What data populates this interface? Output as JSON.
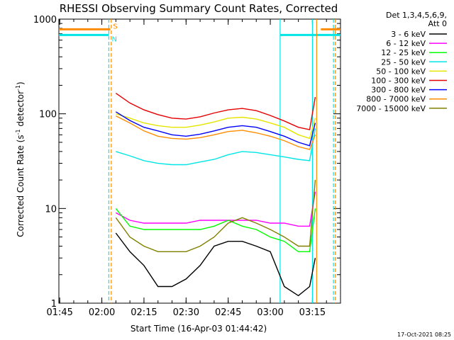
{
  "chart_data": {
    "type": "line",
    "title": "RHESSI Observing Summary Count Rates, Corrected",
    "xlabel": "Start Time (16-Apr-03 01:44:42)",
    "ylabel_main": "Corrected Count Rate (s",
    "ylabel_sup1": "-1",
    "ylabel_mid": " detector",
    "ylabel_sup2": "-1",
    "ylabel_end": ")",
    "y_scale": "log",
    "ylim": [
      1,
      1000
    ],
    "xlim": [
      "01:44:42",
      "03:25:00"
    ],
    "x_ticks": [
      "01:45",
      "02:00",
      "02:15",
      "02:30",
      "02:45",
      "03:00",
      "03:15"
    ],
    "y_ticks": [
      "1",
      "10",
      "100",
      "1000"
    ],
    "legend_title": "Det 1,3,4,5,6,9,",
    "legend_subtitle": "Att 0",
    "legend_placement": "right",
    "footer_date": "17-Oct-2021 08:25",
    "flag_labels": {
      "saa": {
        "text": "S",
        "color": "#ff8c00",
        "value": 780
      },
      "night": {
        "text": "N",
        "color": "#00e5e5",
        "value": 680
      }
    },
    "flag_intervals": {
      "saa": [
        [
          "01:44:42",
          "02:03:00"
        ],
        [
          "03:18:00",
          "03:25:00"
        ]
      ],
      "night": [
        [
          "01:44:42",
          "02:02:30"
        ],
        [
          "03:03:30",
          "03:25:00"
        ]
      ]
    },
    "vertical_lines": [
      {
        "time": "02:02:30",
        "color": "#00e5e5",
        "style": "dashed"
      },
      {
        "time": "02:03:20",
        "color": "#ff8c00",
        "style": "dashed"
      },
      {
        "time": "03:03:30",
        "color": "#00e5e5",
        "style": "solid"
      },
      {
        "time": "03:15:00",
        "color": "#00e5e5",
        "style": "solid"
      },
      {
        "time": "03:16:30",
        "color": "#ff8c00",
        "style": "solid"
      },
      {
        "time": "03:22:30",
        "color": "#00e5e5",
        "style": "dashed"
      },
      {
        "time": "03:23:10",
        "color": "#ff8c00",
        "style": "dashed"
      }
    ],
    "x": [
      "02:05",
      "02:10",
      "02:15",
      "02:20",
      "02:25",
      "02:30",
      "02:35",
      "02:40",
      "02:45",
      "02:50",
      "02:55",
      "03:00",
      "03:05",
      "03:10",
      "03:14",
      "03:16"
    ],
    "series": [
      {
        "name": "3 - 6 keV",
        "color": "#000000",
        "values": [
          5.5,
          3.5,
          2.5,
          1.5,
          1.5,
          1.8,
          2.5,
          4.0,
          4.5,
          4.5,
          4.0,
          3.5,
          1.5,
          1.2,
          1.5,
          3.0
        ]
      },
      {
        "name": "6 - 12 keV",
        "color": "#ff00ff",
        "values": [
          9.0,
          7.5,
          7.0,
          7.0,
          7.0,
          7.0,
          7.5,
          7.5,
          7.5,
          7.5,
          7.5,
          7.0,
          7.0,
          6.5,
          6.5,
          15.0
        ]
      },
      {
        "name": "12 - 25 keV",
        "color": "#00ff00",
        "values": [
          10.0,
          6.5,
          6.0,
          6.0,
          6.0,
          6.0,
          6.0,
          6.5,
          7.5,
          6.5,
          6.0,
          5.0,
          4.5,
          3.5,
          3.5,
          10.0
        ]
      },
      {
        "name": "25 - 50 keV",
        "color": "#00e5e5",
        "values": [
          40.0,
          36.0,
          32.0,
          30.0,
          29.0,
          29.0,
          31.0,
          33.0,
          37.0,
          40.0,
          39.0,
          37.0,
          35.0,
          33.0,
          32.0,
          70.0
        ]
      },
      {
        "name": "50 - 100 keV",
        "color": "#e5e500",
        "values": [
          100.0,
          90.0,
          80.0,
          75.0,
          72.0,
          72.0,
          76.0,
          82.0,
          90.0,
          92.0,
          88.0,
          80.0,
          72.0,
          60.0,
          55.0,
          90.0
        ]
      },
      {
        "name": "100 - 300 keV",
        "color": "#e50000",
        "values": [
          165.0,
          130.0,
          110.0,
          98.0,
          90.0,
          88.0,
          93.0,
          102.0,
          110.0,
          114.0,
          108.0,
          96.0,
          84.0,
          72.0,
          68.0,
          150.0
        ]
      },
      {
        "name": "300 - 800 keV",
        "color": "#0000ff",
        "values": [
          105.0,
          85.0,
          72.0,
          66.0,
          60.0,
          58.0,
          61.0,
          66.0,
          72.0,
          75.0,
          72.0,
          65.0,
          58.0,
          50.0,
          46.0,
          80.0
        ]
      },
      {
        "name": "800 - 7000 keV",
        "color": "#ff8c00",
        "values": [
          95.0,
          80.0,
          66.0,
          58.0,
          55.0,
          54.0,
          56.0,
          60.0,
          65.0,
          67.0,
          63.0,
          58.0,
          52.0,
          45.0,
          42.0,
          60.0
        ]
      },
      {
        "name": "7000 - 15000 keV",
        "color": "#808000",
        "values": [
          8.0,
          5.0,
          4.0,
          3.5,
          3.5,
          3.5,
          4.0,
          5.0,
          7.0,
          8.0,
          7.0,
          6.0,
          5.0,
          4.0,
          4.0,
          20.0
        ]
      }
    ]
  }
}
